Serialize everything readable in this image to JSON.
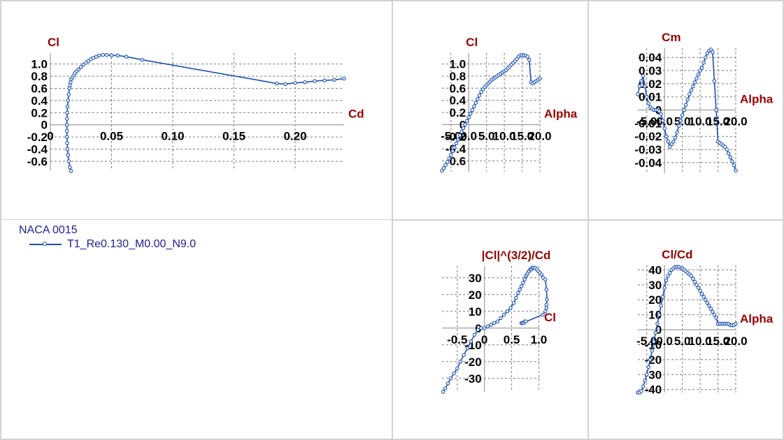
{
  "legend": {
    "title": "NACA 0015",
    "series_name": "T1_Re0.130_M0.00_N9.0"
  },
  "colors": {
    "series": "#1b50b4",
    "axis_title": "#990000",
    "grid": "#7a7a7a",
    "tick": "#000000"
  },
  "chart_data": [
    {
      "id": "polar",
      "type": "line",
      "ylabel": "Cl",
      "xlabel": "Cd",
      "xlim": [
        0,
        0.24
      ],
      "ylim": [
        -0.75,
        1.18
      ],
      "xticks": [
        0,
        0.05,
        0.1,
        0.15,
        0.2
      ],
      "xtick_labels": [
        "0",
        "0.05",
        "0.10",
        "0.15",
        "0.20"
      ],
      "yticks": [
        -0.6,
        -0.4,
        -0.2,
        0,
        0.2,
        0.4,
        0.6,
        0.8,
        1.0
      ],
      "ytick_labels": [
        "-0.6",
        "-0.4",
        "-0.2",
        "0",
        "0.2",
        "0.4",
        "0.6",
        "0.8",
        "1.0"
      ],
      "grid": true,
      "series": [
        {
          "x": [
            0.0168,
            0.016,
            0.015,
            0.0145,
            0.014,
            0.0138,
            0.0136,
            0.0135,
            0.0135,
            0.0136,
            0.0138,
            0.014,
            0.0145,
            0.015,
            0.0155,
            0.016,
            0.0165,
            0.017,
            0.018,
            0.019,
            0.02,
            0.0215,
            0.023,
            0.025,
            0.027,
            0.029,
            0.031,
            0.033,
            0.035,
            0.0375,
            0.04,
            0.043,
            0.046,
            0.05,
            0.055,
            0.062,
            0.075,
            0.185,
            0.192,
            0.2,
            0.208,
            0.216,
            0.224,
            0.232,
            0.24
          ],
          "y": [
            -0.76,
            -0.7,
            -0.6,
            -0.5,
            -0.4,
            -0.3,
            -0.2,
            -0.1,
            0.0,
            0.1,
            0.2,
            0.3,
            0.4,
            0.5,
            0.6,
            0.65,
            0.7,
            0.75,
            0.78,
            0.81,
            0.85,
            0.88,
            0.91,
            0.95,
            0.99,
            1.02,
            1.05,
            1.08,
            1.1,
            1.12,
            1.14,
            1.15,
            1.15,
            1.14,
            1.14,
            1.12,
            1.07,
            0.68,
            0.67,
            0.69,
            0.7,
            0.72,
            0.73,
            0.74,
            0.76
          ]
        }
      ]
    },
    {
      "id": "cl-alpha",
      "type": "line",
      "ylabel": "Cl",
      "xlabel": "Alpha",
      "xlim": [
        -7.5,
        20.0
      ],
      "ylim": [
        -0.78,
        1.18
      ],
      "xticks": [
        -5.0,
        0.0,
        5.0,
        10.0,
        15.0,
        20.0
      ],
      "xtick_labels": [
        "-5.0",
        "0.0",
        "5.0",
        "10.0",
        "15.0",
        "20.0"
      ],
      "yticks": [
        -0.6,
        -0.4,
        -0.2,
        0,
        0.2,
        0.4,
        0.6,
        0.8,
        1.0
      ],
      "ytick_labels": [
        "-0.6",
        "-0.4",
        "-0.2",
        "0",
        "0.2",
        "0.4",
        "0.6",
        "0.8",
        "1.0"
      ],
      "grid": true,
      "series": [
        {
          "x": [
            -7.5,
            -7.0,
            -6.5,
            -6.0,
            -5.5,
            -5.0,
            -4.5,
            -4.0,
            -3.5,
            -3.0,
            -2.5,
            -2.0,
            -1.5,
            -1.0,
            -0.5,
            0.0,
            0.5,
            1.0,
            1.5,
            2.0,
            2.5,
            3.0,
            3.5,
            4.0,
            4.5,
            5.0,
            5.5,
            6.0,
            6.5,
            7.0,
            7.5,
            8.0,
            8.5,
            9.0,
            9.5,
            10.0,
            10.5,
            11.0,
            11.5,
            12.0,
            12.5,
            13.0,
            13.5,
            14.0,
            14.5,
            15.0,
            15.5,
            16.0,
            16.5,
            17.0,
            17.5,
            18.0,
            18.5,
            19.0,
            19.5,
            20.0
          ],
          "y": [
            -0.76,
            -0.72,
            -0.67,
            -0.62,
            -0.56,
            -0.5,
            -0.44,
            -0.38,
            -0.31,
            -0.25,
            -0.18,
            -0.12,
            -0.06,
            0.0,
            0.06,
            0.12,
            0.18,
            0.24,
            0.3,
            0.36,
            0.42,
            0.48,
            0.54,
            0.58,
            0.62,
            0.65,
            0.68,
            0.71,
            0.74,
            0.76,
            0.78,
            0.8,
            0.82,
            0.84,
            0.86,
            0.88,
            0.9,
            0.93,
            0.96,
            0.99,
            1.02,
            1.05,
            1.08,
            1.12,
            1.14,
            1.15,
            1.14,
            1.14,
            1.12,
            1.07,
            0.7,
            0.68,
            0.7,
            0.72,
            0.74,
            0.76
          ]
        }
      ]
    },
    {
      "id": "cm-alpha",
      "type": "line",
      "ylabel": "Cm",
      "xlabel": "Alpha",
      "xlim": [
        -7.5,
        20.0
      ],
      "ylim": [
        -0.048,
        0.047
      ],
      "xticks": [
        -5.0,
        0.0,
        5.0,
        10.0,
        15.0,
        20.0
      ],
      "xtick_labels": [
        "-5.0",
        "0.0",
        "5.0",
        "10.0",
        "15.0",
        "20.0"
      ],
      "yticks": [
        -0.04,
        -0.03,
        -0.02,
        -0.01,
        0,
        0.01,
        0.02,
        0.03,
        0.04
      ],
      "ytick_labels": [
        "-0.04",
        "-0.03",
        "-0.02",
        "-0.01",
        "0",
        "0.01",
        "0.02",
        "0.03",
        "0.04"
      ],
      "grid": true,
      "series": [
        {
          "x": [
            -7.5,
            -7.0,
            -6.5,
            -6.0,
            -5.5,
            -5.0,
            -4.5,
            -4.0,
            -3.5,
            -3.0,
            -2.5,
            -2.0,
            -1.5,
            -1.0,
            -0.5,
            0.0,
            0.5,
            1.0,
            1.5,
            2.0,
            2.5,
            3.0,
            3.5,
            4.0,
            4.5,
            5.0,
            5.5,
            6.0,
            6.5,
            7.0,
            7.5,
            8.0,
            8.5,
            9.0,
            9.5,
            10.0,
            10.5,
            11.0,
            11.5,
            12.0,
            12.5,
            13.0,
            13.5,
            14.0,
            14.5,
            15.0,
            15.5,
            16.0,
            16.5,
            17.0,
            17.5,
            18.0,
            18.5,
            19.0,
            19.5,
            20.0
          ],
          "y": [
            0.012,
            0.018,
            0.022,
            0.026,
            0.018,
            0.01,
            0.005,
            0.002,
            0.001,
            0.0,
            0.0,
            0.0,
            -0.001,
            -0.003,
            -0.008,
            -0.014,
            -0.02,
            -0.024,
            -0.028,
            -0.026,
            -0.024,
            -0.021,
            -0.017,
            -0.012,
            -0.008,
            -0.004,
            0.0,
            0.004,
            0.008,
            0.012,
            0.015,
            0.018,
            0.021,
            0.024,
            0.027,
            0.03,
            0.032,
            0.036,
            0.04,
            0.043,
            0.045,
            0.046,
            0.044,
            0.022,
            0.0,
            -0.024,
            -0.025,
            -0.026,
            -0.027,
            -0.028,
            -0.03,
            -0.033,
            -0.036,
            -0.039,
            -0.042,
            -0.046
          ]
        }
      ]
    },
    {
      "id": "power",
      "type": "line",
      "ylabel": "|Cl|^(3/2)/Cd",
      "xlabel": "Cl",
      "xlim": [
        -0.78,
        1.02
      ],
      "ylim": [
        -38,
        37
      ],
      "xticks": [
        -0.5,
        0,
        0.5,
        1.0
      ],
      "xtick_labels": [
        "-0.5",
        "0",
        "0.5",
        "1.0"
      ],
      "yticks": [
        -30,
        -20,
        -10,
        0,
        10,
        20,
        30
      ],
      "ytick_labels": [
        "-30",
        "-20",
        "-10",
        "0",
        "10",
        "20",
        "30"
      ],
      "grid": true,
      "series": [
        {
          "x": [
            -0.76,
            -0.72,
            -0.67,
            -0.62,
            -0.56,
            -0.5,
            -0.44,
            -0.38,
            -0.31,
            -0.25,
            -0.18,
            -0.12,
            -0.06,
            0.0,
            0.06,
            0.12,
            0.18,
            0.24,
            0.3,
            0.36,
            0.42,
            0.48,
            0.54,
            0.58,
            0.62,
            0.65,
            0.68,
            0.71,
            0.74,
            0.76,
            0.78,
            0.8,
            0.82,
            0.84,
            0.86,
            0.88,
            0.9,
            0.93,
            0.96,
            0.99,
            1.02,
            1.05,
            1.08,
            1.12,
            1.14,
            1.15,
            1.14,
            1.14,
            1.12,
            1.07,
            0.7,
            0.68,
            0.7,
            0.72,
            0.74,
            0.76
          ],
          "y": [
            -38,
            -36,
            -33,
            -30,
            -27,
            -24,
            -20,
            -16,
            -12,
            -8,
            -4,
            -1,
            0,
            0,
            1,
            2,
            3,
            4,
            6,
            8,
            10,
            12,
            15,
            18,
            21,
            23,
            25,
            27,
            29,
            31,
            32,
            33,
            34,
            35,
            35,
            36,
            36,
            36,
            35,
            34,
            33,
            32,
            30,
            29,
            23,
            17,
            14,
            12,
            10,
            8,
            3,
            3,
            3,
            3,
            4,
            4
          ]
        }
      ]
    },
    {
      "id": "cl-cd",
      "type": "line",
      "ylabel": "Cl/Cd",
      "xlabel": "Alpha",
      "xlim": [
        -7.5,
        20.0
      ],
      "ylim": [
        -42,
        43
      ],
      "xticks": [
        -5.0,
        0.0,
        5.0,
        10.0,
        15.0,
        20.0
      ],
      "xtick_labels": [
        "-5.0",
        "0.0",
        "5.0",
        "10.0",
        "15.0",
        "20.0"
      ],
      "yticks": [
        -40,
        -30,
        -20,
        -10,
        0,
        10,
        20,
        30,
        40
      ],
      "ytick_labels": [
        "-40",
        "-30",
        "-20",
        "-10",
        "0",
        "10",
        "20",
        "30",
        "40"
      ],
      "grid": true,
      "series": [
        {
          "x": [
            -7.5,
            -7.0,
            -6.5,
            -6.0,
            -5.5,
            -5.0,
            -4.5,
            -4.0,
            -3.5,
            -3.0,
            -2.5,
            -2.0,
            -1.5,
            -1.0,
            -0.5,
            0.0,
            0.5,
            1.0,
            1.5,
            2.0,
            2.5,
            3.0,
            3.5,
            4.0,
            4.5,
            5.0,
            5.5,
            6.0,
            6.5,
            7.0,
            7.5,
            8.0,
            8.5,
            9.0,
            9.5,
            10.0,
            10.5,
            11.0,
            11.5,
            12.0,
            12.5,
            13.0,
            13.5,
            14.0,
            14.5,
            15.0,
            15.5,
            16.0,
            16.5,
            17.0,
            17.5,
            18.0,
            18.5,
            19.0,
            19.5,
            20.0
          ],
          "y": [
            -42,
            -42,
            -41,
            -38,
            -34,
            -30,
            -25,
            -20,
            -14,
            -8,
            -2,
            4,
            10,
            16,
            22,
            28,
            33,
            36,
            38,
            40,
            41,
            42,
            42,
            42,
            41,
            41,
            40,
            39,
            38,
            37,
            36,
            34,
            32,
            30,
            28,
            26,
            24,
            22,
            20,
            18,
            16,
            14,
            12,
            10,
            8,
            4,
            4,
            4,
            4,
            4,
            4,
            4,
            3,
            3,
            3,
            4
          ]
        }
      ]
    }
  ]
}
